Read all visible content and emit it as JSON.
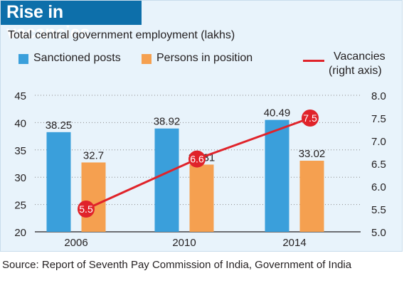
{
  "chart_data": {
    "type": "bar",
    "title": "Rise in vacancies",
    "subtitle": "Total central government employment (lakhs)",
    "categories": [
      "2006",
      "2010",
      "2014"
    ],
    "series": [
      {
        "name": "Sanctioned posts",
        "type": "bar",
        "axis": "left",
        "values": [
          38.25,
          38.92,
          40.49
        ],
        "labels": [
          "38.25",
          "38.92",
          "40.49"
        ],
        "color": "#3a9fdb"
      },
      {
        "name": "Persons in position",
        "type": "bar",
        "axis": "left",
        "values": [
          32.7,
          32.31,
          33.02
        ],
        "labels": [
          "32.7",
          "32.31",
          "33.02"
        ],
        "color": "#f5a050"
      },
      {
        "name": "Vacancies",
        "type": "line",
        "axis": "right",
        "values": [
          5.5,
          6.6,
          7.5
        ],
        "labels": [
          "5.5",
          "6.6",
          "7.5"
        ],
        "color": "#e0232a"
      }
    ],
    "legend_right_axis_note": "(right axis)",
    "ylim_left": [
      20,
      45
    ],
    "yticks_left": [
      "20",
      "25",
      "30",
      "35",
      "40",
      "45"
    ],
    "ylim_right": [
      5.0,
      8.0
    ],
    "yticks_right": [
      "5.0",
      "5.5",
      "6.0",
      "6.5",
      "7.0",
      "7.5",
      "8.0"
    ],
    "grid": "dotted horizontal",
    "source": "Source: Report of Seventh Pay Commission of India, Government of India"
  },
  "colors": {
    "title_bar": "#0d6faa",
    "background": "#e8f3fb",
    "sanctioned": "#3a9fdb",
    "in_position": "#f5a050",
    "vacancies": "#e0232a"
  }
}
